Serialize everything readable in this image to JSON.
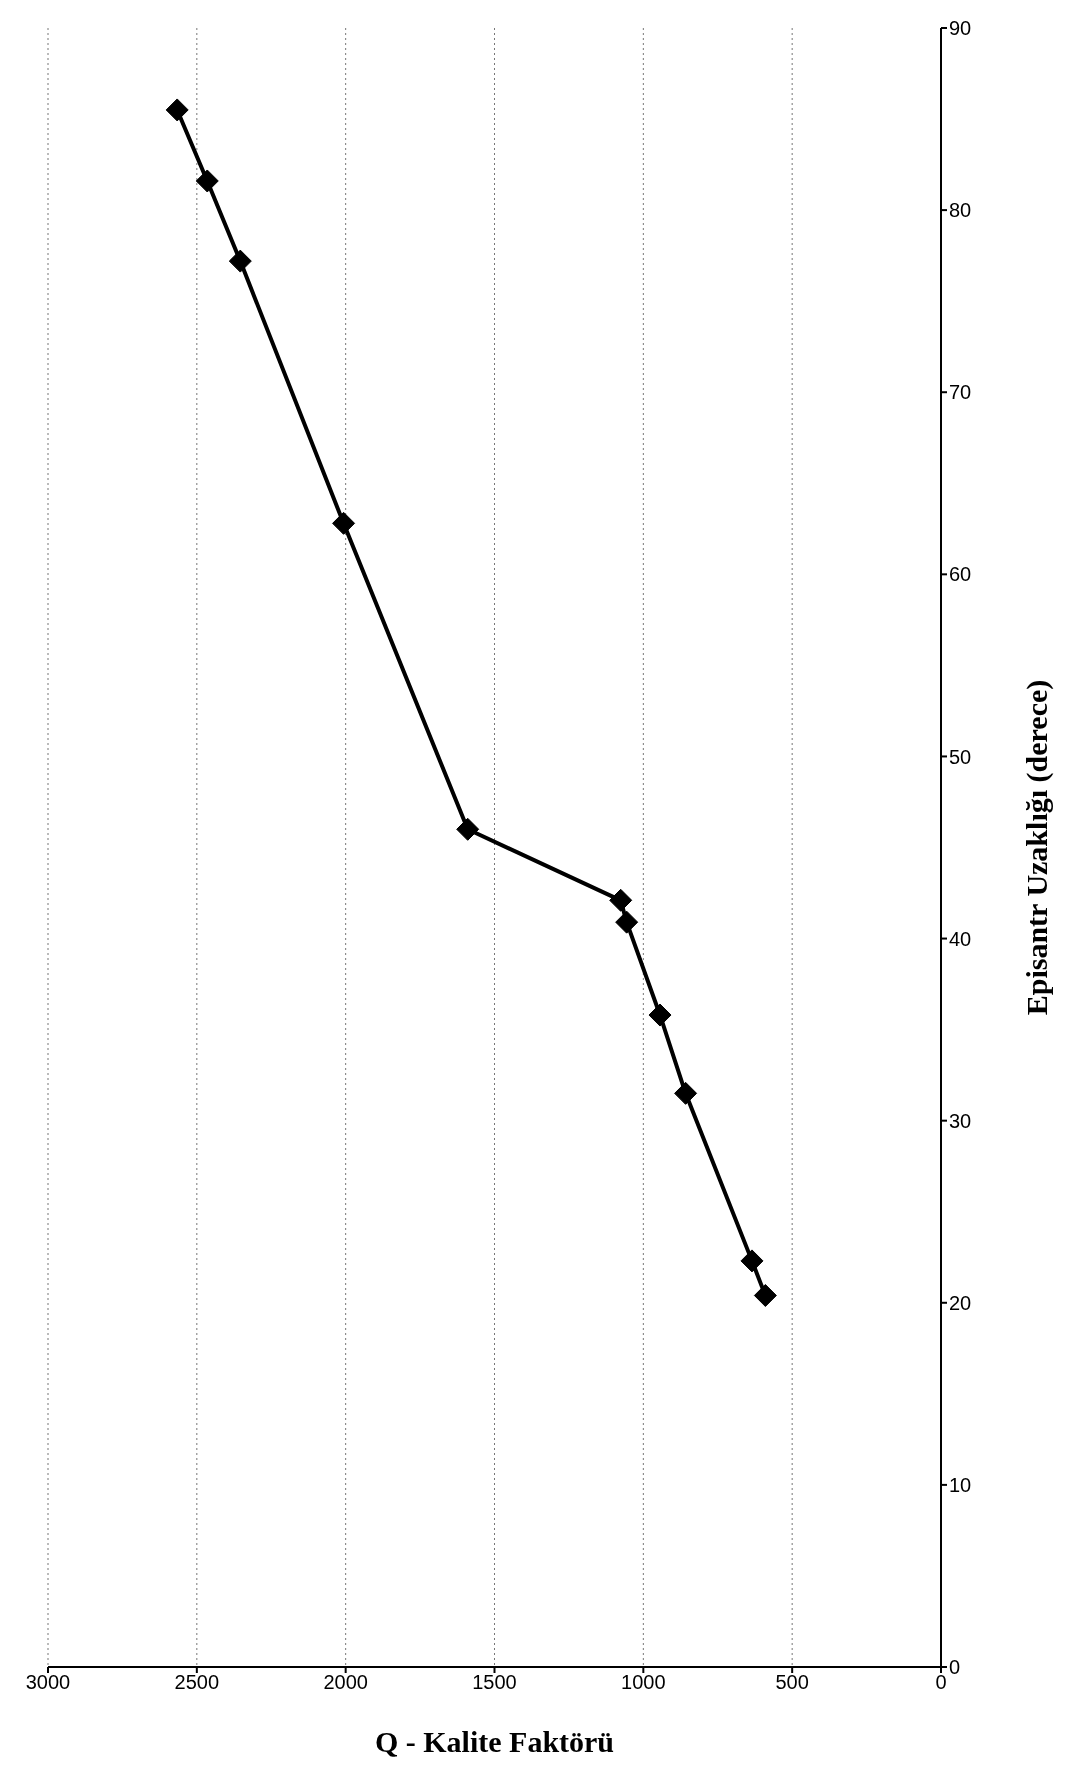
{
  "chart_data": {
    "type": "line",
    "xlabel": "Q - Kalite Faktörü",
    "ylabel": "Episantr Uzaklığı (derece)",
    "x": [
      590,
      635,
      858,
      944,
      1056,
      1076,
      1590,
      2007,
      2354,
      2465,
      2566
    ],
    "series": [
      {
        "color": "#000000",
        "values": [
          20.4,
          22.3,
          31.5,
          35.8,
          40.9,
          42.1,
          46.0,
          62.8,
          77.2,
          81.6,
          85.5
        ]
      }
    ],
    "xlim": [
      3000,
      0
    ],
    "xticks": [
      0,
      500,
      1000,
      1500,
      2000,
      2500,
      3000
    ],
    "ylim": [
      0,
      90
    ],
    "yticks": [
      0,
      10,
      20,
      30,
      40,
      50,
      60,
      70,
      80,
      90
    ],
    "grid": "x",
    "marker": "diamond",
    "line_style": "solid"
  }
}
